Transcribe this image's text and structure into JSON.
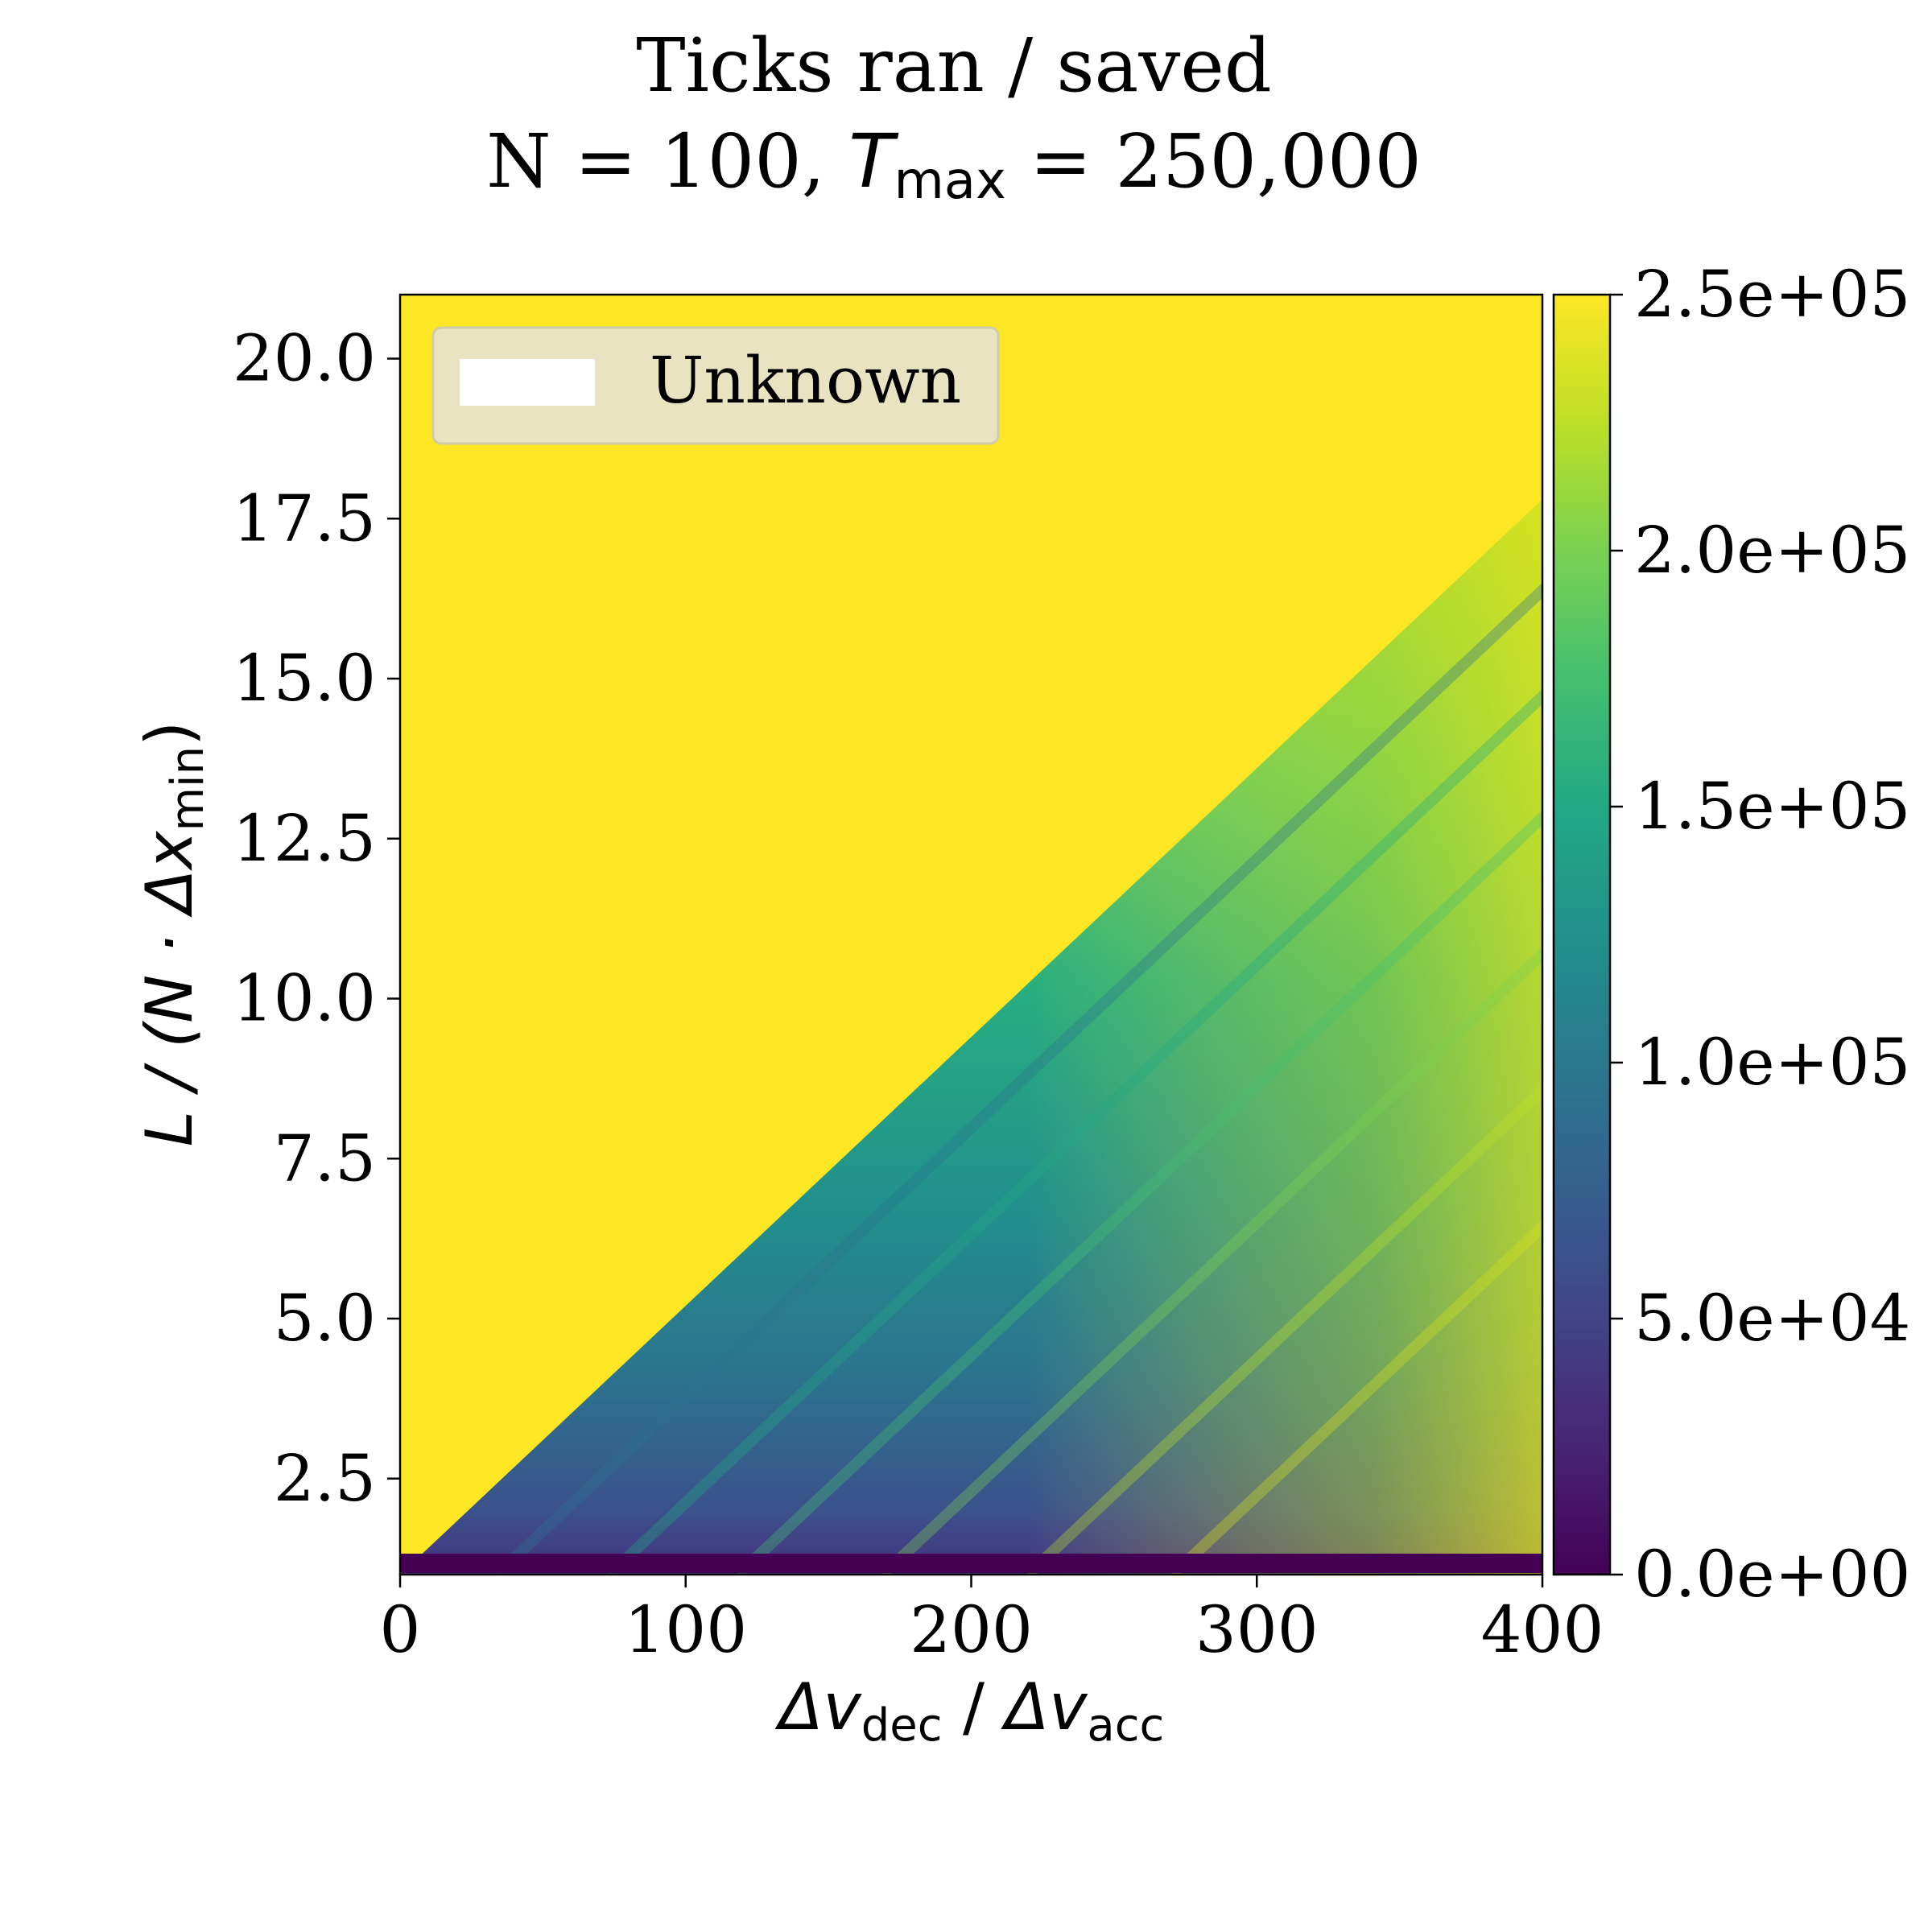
{
  "chart_data": {
    "type": "heatmap",
    "title": "Ticks ran / saved",
    "subtitle": {
      "prefix": "N = 100, ",
      "symbol": "T",
      "subscript": "max",
      "suffix": " = 250,000"
    },
    "xlabel": {
      "part1_symbol": "Δv",
      "part1_sub": "dec",
      "sep": " / ",
      "part2_symbol": "Δv",
      "part2_sub": "acc"
    },
    "ylabel": {
      "pre": "L / (N · Δx",
      "sub": "min",
      "post": ")"
    },
    "xlim": [
      0,
      400
    ],
    "ylim": [
      1.0,
      21.0
    ],
    "x_ticks": [
      0,
      100,
      200,
      300,
      400
    ],
    "x_tick_labels": [
      "0",
      "100",
      "200",
      "300",
      "400"
    ],
    "y_ticks": [
      2.5,
      5.0,
      7.5,
      10.0,
      12.5,
      15.0,
      17.5,
      20.0
    ],
    "y_tick_labels": [
      "2.5",
      "5.0",
      "7.5",
      "10.0",
      "12.5",
      "15.0",
      "17.5",
      "20.0"
    ],
    "colorbar": {
      "colormap": "viridis",
      "vmin": 0,
      "vmax": 250000,
      "ticks": [
        0,
        50000,
        100000,
        150000,
        200000,
        250000
      ],
      "tick_labels": [
        "0.0e+00",
        "5.0e+04",
        "1.0e+05",
        "1.5e+05",
        "2.0e+05",
        "2.5e+05"
      ]
    },
    "legend": {
      "position": "upper-left",
      "entries": [
        {
          "label": "Unknown",
          "color": "#ffffff"
        }
      ],
      "background": "#e8e4c2"
    },
    "saturated_region": {
      "description_value": 250000,
      "boundary_x": [
        0,
        400
      ],
      "boundary_y": [
        1.0,
        17.8
      ]
    },
    "grid": false
  }
}
